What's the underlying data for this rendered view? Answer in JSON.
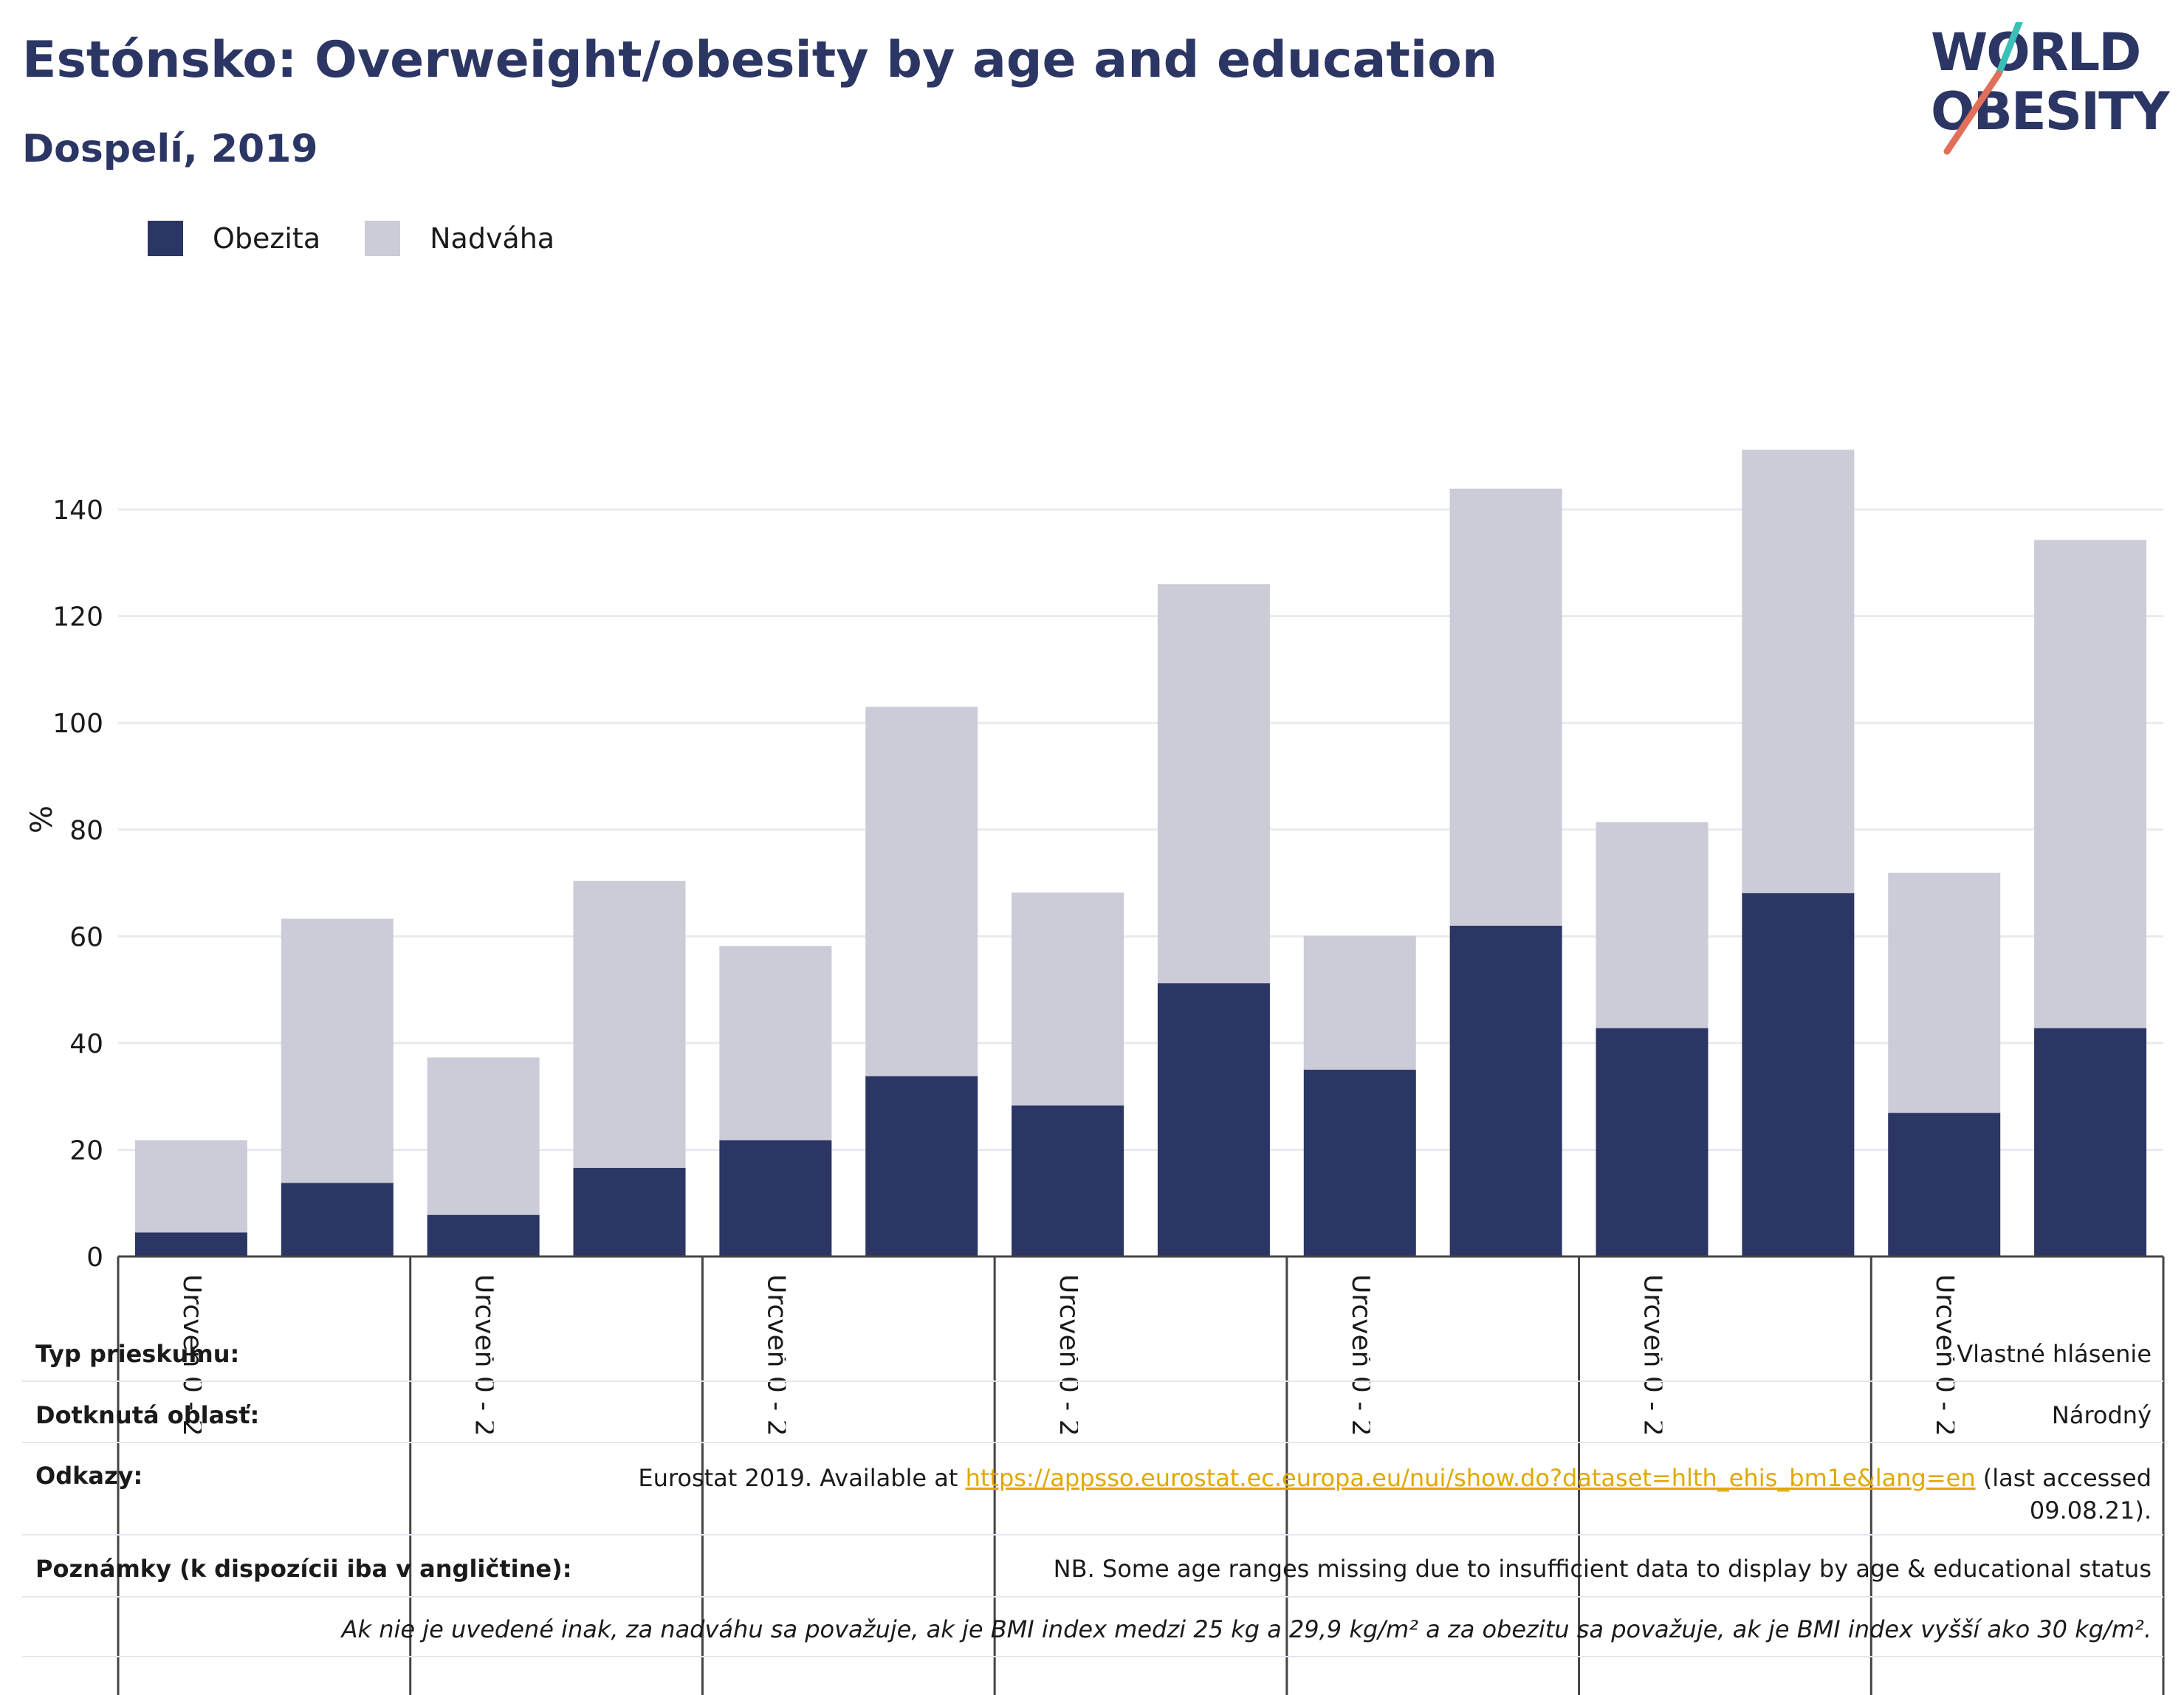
{
  "header": {
    "title": "Estónsko: Overweight/obesity by age and education",
    "subtitle": "Dospelí, 2019"
  },
  "logo": {
    "line1": "WORLD",
    "line2": "OBESITY"
  },
  "colors": {
    "obesity": "#2b3664",
    "overweight": "#cbccd8",
    "title": "#2b3664",
    "link": "#e0a800"
  },
  "chart_data": {
    "type": "bar",
    "stacked": true,
    "ylabel": "%",
    "ylim": [
      0,
      158
    ],
    "yticks": [
      0,
      20,
      40,
      60,
      80,
      100,
      120,
      140
    ],
    "grid": true,
    "legend_position": "top-left",
    "categories": [
      "Úrcveň 0 - 2",
      "",
      "Úrcveň 0 - 2",
      "",
      "Úrcveň 0 - 2",
      "",
      "Úrcveň 0 - 2",
      "",
      "Úrcveň 0 - 2",
      "",
      "Úrcveň 0 - 2",
      "",
      "Úrcveň 0 - 2",
      ""
    ],
    "series": [
      {
        "name": "Obezita",
        "values": [
          4.5,
          13.8,
          7.8,
          16.6,
          21.8,
          33.8,
          28.3,
          51.2,
          35.0,
          62.0,
          42.8,
          68.1,
          26.9,
          42.8
        ]
      },
      {
        "name": "Nadváha",
        "values": [
          17.3,
          49.5,
          29.5,
          53.8,
          36.4,
          69.2,
          39.9,
          74.8,
          25.1,
          81.9,
          38.6,
          83.1,
          45.0,
          91.5
        ]
      }
    ]
  },
  "footer": {
    "survey_label": "Typ prieskumu:",
    "survey_value": "Vlastné hlásenie",
    "area_label": "Dotknutá oblasť:",
    "area_value": "Národný",
    "refs_label": "Odkazy:",
    "refs_prefix": "Eurostat 2019. Available at ",
    "refs_link": "https://appsso.eurostat.ec.europa.eu/nui/show.do?dataset=hlth_ehis_bm1e&lang=en",
    "refs_suffix": " (last accessed",
    "refs_date": "09.08.21).",
    "notes_label": "Poznámky (k dispozícii iba v angličtine):",
    "notes_value": "NB. Some age ranges missing due to insufficient data to display by age & educational status",
    "definition": "Ak nie je uvedené inak, za nadváhu sa považuje, ak je BMI index medzi 25 kg a 29,9 kg/m² a za obezitu sa považuje, ak je BMI index vyšší ako 30 kg/m²."
  }
}
